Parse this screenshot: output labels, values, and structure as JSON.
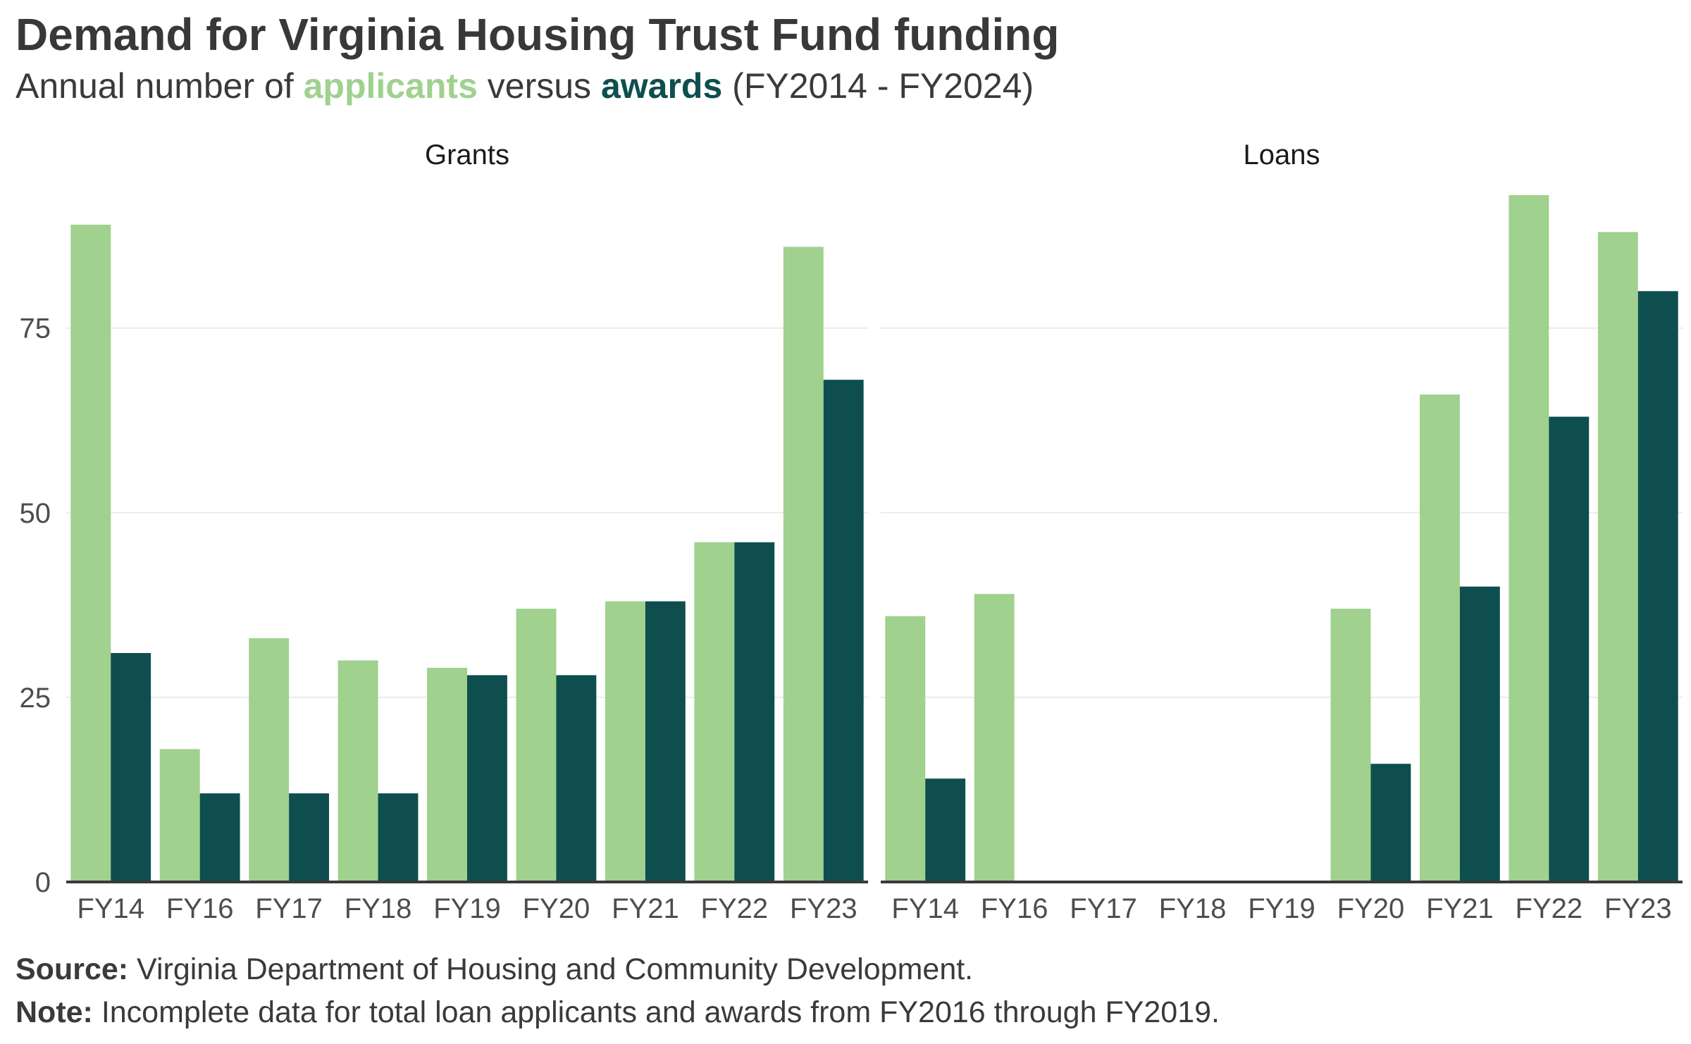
{
  "header": {
    "title": "Demand for Virginia Housing Trust Fund funding",
    "subtitle_prefix": "Annual number of ",
    "subtitle_applicants": "applicants",
    "subtitle_middle": " versus ",
    "subtitle_awards": "awards",
    "subtitle_suffix": " (FY2014 - FY2024)"
  },
  "footer": {
    "source_label": "Source:",
    "source_text": " Virginia Department of Housing and Community Development.",
    "note_label": "Note:",
    "note_text": " Incomplete data for total loan applicants and awards from FY2016 through FY2019."
  },
  "colors": {
    "applicants": "#a0d18e",
    "awards": "#0e4e4f",
    "axis": "#3a3a3a",
    "grid": "#ebebeb"
  },
  "chart_data": [
    {
      "type": "bar",
      "panel": "Grants",
      "categories": [
        "FY14",
        "FY16",
        "FY17",
        "FY18",
        "FY19",
        "FY20",
        "FY21",
        "FY22",
        "FY23"
      ],
      "series": [
        {
          "name": "applicants",
          "values": [
            89,
            18,
            33,
            30,
            29,
            37,
            38,
            46,
            86
          ]
        },
        {
          "name": "awards",
          "values": [
            31,
            12,
            12,
            12,
            28,
            28,
            38,
            46,
            68
          ]
        }
      ],
      "yticks": [
        0,
        25,
        50,
        75
      ],
      "ylim": [
        0,
        93
      ],
      "grid": true
    },
    {
      "type": "bar",
      "panel": "Loans",
      "categories": [
        "FY14",
        "FY16",
        "FY17",
        "FY18",
        "FY19",
        "FY20",
        "FY21",
        "FY22",
        "FY23"
      ],
      "series": [
        {
          "name": "applicants",
          "values": [
            36,
            39,
            null,
            null,
            null,
            37,
            66,
            93,
            88
          ]
        },
        {
          "name": "awards",
          "values": [
            14,
            null,
            null,
            null,
            null,
            16,
            40,
            63,
            80
          ]
        }
      ],
      "yticks": [
        0,
        25,
        50,
        75
      ],
      "ylim": [
        0,
        93
      ],
      "grid": true
    }
  ]
}
